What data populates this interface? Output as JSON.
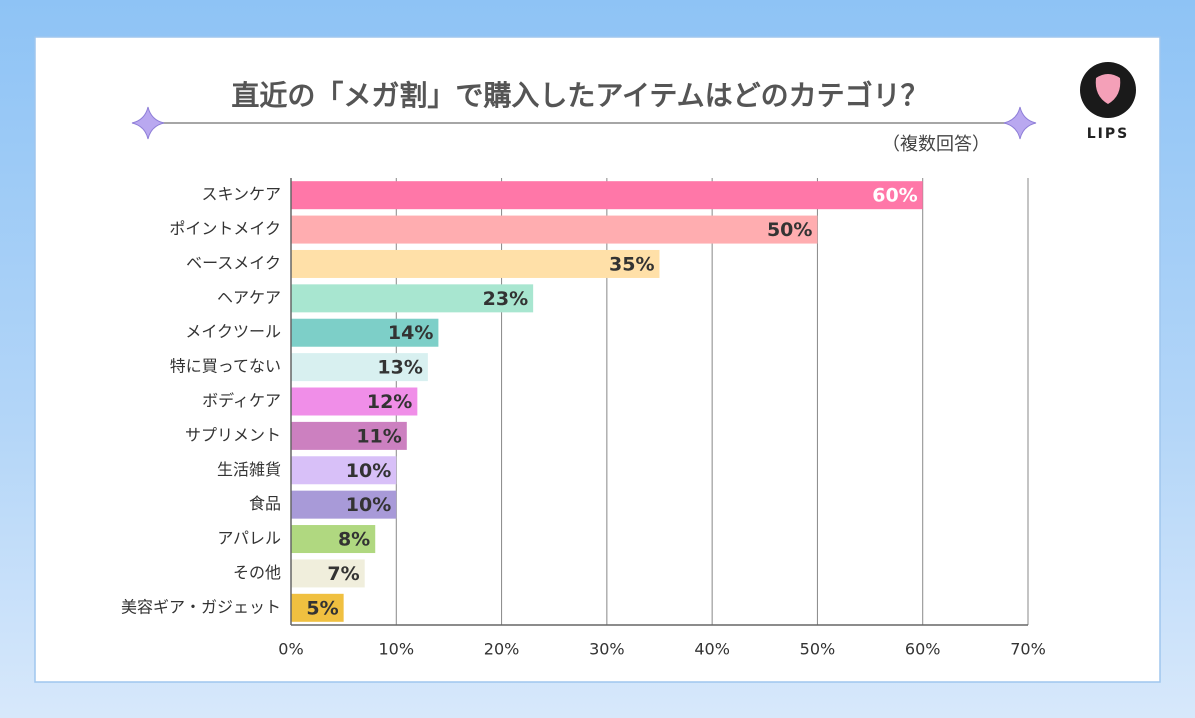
{
  "brand": "LIPS",
  "chart_data": {
    "type": "bar",
    "orientation": "horizontal",
    "title": "直近の「メガ割」で購入したアイテムはどのカテゴリ？",
    "subtitle": "（複数回答）",
    "categories": [
      "スキンケア",
      "ポイントメイク",
      "ベースメイク",
      "ヘアケア",
      "メイクツール",
      "特に買ってない",
      "ボディケア",
      "サプリメント",
      "生活雑貨",
      "食品",
      "アパレル",
      "その他",
      "美容ギア・ガジェット"
    ],
    "values": [
      60,
      50,
      35,
      23,
      14,
      13,
      12,
      11,
      10,
      10,
      8,
      7,
      5
    ],
    "value_labels": [
      "60%",
      "50%",
      "35%",
      "23%",
      "14%",
      "13%",
      "12%",
      "11%",
      "10%",
      "10%",
      "8%",
      "7%",
      "5%"
    ],
    "colors": [
      "#ff77a8",
      "#ffadb0",
      "#ffe0a8",
      "#a8e6d0",
      "#7dcfc8",
      "#d8f0f0",
      "#f08ee8",
      "#cc80c0",
      "#d8c0f8",
      "#a89ad8",
      "#b0d880",
      "#f0eedc",
      "#f0c040"
    ],
    "label_colors": [
      "#ffffff",
      "#333333",
      "#333333",
      "#333333",
      "#333333",
      "#333333",
      "#333333",
      "#333333",
      "#333333",
      "#333333",
      "#333333",
      "#333333",
      "#333333"
    ],
    "xlim": [
      0,
      70
    ],
    "xticks": [
      {
        "value": 0,
        "label": "0%"
      },
      {
        "value": 10,
        "label": "10%"
      },
      {
        "value": 20,
        "label": "20%"
      },
      {
        "value": 30,
        "label": "30%"
      },
      {
        "value": 40,
        "label": "40%"
      },
      {
        "value": 50,
        "label": "50%"
      },
      {
        "value": 60,
        "label": "60%"
      },
      {
        "value": 70,
        "label": "70%"
      }
    ],
    "grid": true
  }
}
